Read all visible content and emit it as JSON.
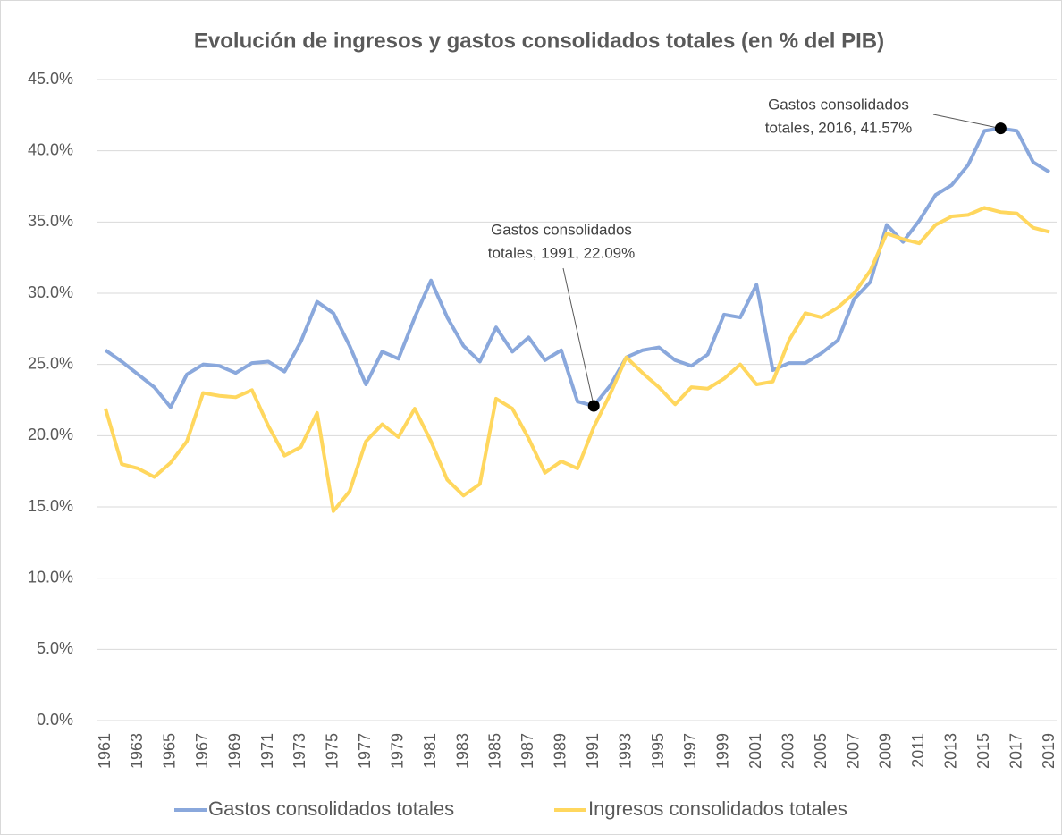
{
  "chart_data": {
    "type": "line",
    "title": "Evolución de ingresos y gastos consolidados totales (en % del PIB)",
    "x": [
      1961,
      1962,
      1963,
      1964,
      1965,
      1966,
      1967,
      1968,
      1969,
      1970,
      1971,
      1972,
      1973,
      1974,
      1975,
      1976,
      1977,
      1978,
      1979,
      1980,
      1981,
      1982,
      1983,
      1984,
      1985,
      1986,
      1987,
      1988,
      1989,
      1990,
      1991,
      1992,
      1993,
      1994,
      1995,
      1996,
      1997,
      1998,
      1999,
      2000,
      2001,
      2002,
      2003,
      2004,
      2005,
      2006,
      2007,
      2008,
      2009,
      2010,
      2011,
      2012,
      2013,
      2014,
      2015,
      2016,
      2017,
      2018,
      2019
    ],
    "xlim": [
      1961,
      2019
    ],
    "xticks": [
      1961,
      1963,
      1965,
      1967,
      1969,
      1971,
      1973,
      1975,
      1977,
      1979,
      1981,
      1983,
      1985,
      1987,
      1989,
      1991,
      1993,
      1995,
      1997,
      1999,
      2001,
      2003,
      2005,
      2007,
      2009,
      2011,
      2013,
      2015,
      2017,
      2019
    ],
    "ylim": [
      0,
      45
    ],
    "yticks": [
      {
        "value": 0,
        "label": "0.0%"
      },
      {
        "value": 5,
        "label": "5.0%"
      },
      {
        "value": 10,
        "label": "10.0%"
      },
      {
        "value": 15,
        "label": "15.0%"
      },
      {
        "value": 20,
        "label": "20.0%"
      },
      {
        "value": 25,
        "label": "25.0%"
      },
      {
        "value": 30,
        "label": "30.0%"
      },
      {
        "value": 35,
        "label": "35.0%"
      },
      {
        "value": 40,
        "label": "40.0%"
      },
      {
        "value": 45,
        "label": "45.0%"
      }
    ],
    "grid": true,
    "legend": "bottom",
    "series": [
      {
        "name": "Gastos consolidados totales",
        "color": "#8aa8dc",
        "values": [
          26.0,
          25.2,
          24.3,
          23.4,
          22.0,
          24.3,
          25.0,
          24.9,
          24.4,
          25.1,
          25.2,
          24.5,
          26.6,
          29.4,
          28.6,
          26.3,
          23.6,
          25.9,
          25.4,
          28.3,
          30.9,
          28.3,
          26.3,
          25.2,
          27.6,
          25.9,
          26.9,
          25.3,
          26.0,
          22.4,
          22.09,
          23.5,
          25.5,
          26.0,
          26.2,
          25.3,
          24.9,
          25.7,
          28.5,
          28.3,
          30.6,
          24.6,
          25.1,
          25.1,
          25.8,
          26.7,
          29.6,
          30.8,
          34.8,
          33.6,
          35.1,
          36.9,
          37.6,
          39.0,
          41.4,
          41.57,
          41.4,
          39.2,
          38.5
        ]
      },
      {
        "name": "Ingresos consolidados totales",
        "color": "#ffd75e",
        "values": [
          21.9,
          18.0,
          17.7,
          17.1,
          18.1,
          19.6,
          23.0,
          22.8,
          22.7,
          23.2,
          20.7,
          18.6,
          19.2,
          21.6,
          14.7,
          16.1,
          19.6,
          20.8,
          19.9,
          21.9,
          19.6,
          16.9,
          15.8,
          16.6,
          22.6,
          21.9,
          19.8,
          17.4,
          18.2,
          17.7,
          20.6,
          22.9,
          25.5,
          24.4,
          23.4,
          22.2,
          23.4,
          23.3,
          24.0,
          25.0,
          23.6,
          23.8,
          26.7,
          28.6,
          28.3,
          29.0,
          30.0,
          31.6,
          34.2,
          33.8,
          33.5,
          34.8,
          35.4,
          35.5,
          36.0,
          35.7,
          35.6,
          34.6,
          34.3
        ]
      }
    ],
    "annotations": [
      {
        "lines": [
          "Gastos consolidados",
          "totales, 1991, 22.09%"
        ],
        "x": 1991,
        "y": 22.09
      },
      {
        "lines": [
          "Gastos consolidados",
          "totales, 2016, 41.57%"
        ],
        "x": 2016,
        "y": 41.57
      }
    ]
  }
}
